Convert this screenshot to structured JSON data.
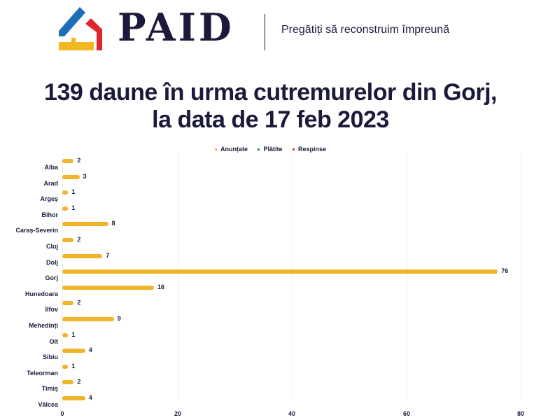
{
  "header": {
    "logo_text": "PAID",
    "tagline": "Pregătiți să reconstruim împreună",
    "logo_colors": {
      "blue": "#1f6fb8",
      "red": "#e0262b",
      "yellow": "#f2b822"
    }
  },
  "title": {
    "line1": "139 daune în urma cutremurelor din Gorj,",
    "line2": "la data de 17 feb 2023"
  },
  "legend": [
    {
      "label": "Anunțate",
      "color": "#f0b429"
    },
    {
      "label": "Plătite",
      "color": "#2a7a7a"
    },
    {
      "label": "Respinse",
      "color": "#c0392b"
    }
  ],
  "axis": {
    "ticks": [
      "0",
      "20",
      "40",
      "60",
      "80"
    ]
  },
  "chart_data": {
    "type": "bar",
    "orientation": "horizontal",
    "title": "139 daune în urma cutremurelor din Gorj, la data de 17 feb 2023",
    "categories": [
      "Alba",
      "Arad",
      "Argeș",
      "Bihor",
      "Caraș-Severin",
      "Cluj",
      "Dolj",
      "Gorj",
      "Hunedoara",
      "Ilfov",
      "Mehedinți",
      "Olt",
      "Sibiu",
      "Teleorman",
      "Timiș",
      "Vâlcea"
    ],
    "series": [
      {
        "name": "Anunțate",
        "color": "#f0b429",
        "values": [
          2,
          3,
          1,
          1,
          8,
          2,
          7,
          76,
          16,
          2,
          9,
          1,
          4,
          1,
          2,
          4
        ]
      },
      {
        "name": "Plătite",
        "color": "#2a7a7a",
        "values": [
          0,
          0,
          0,
          0,
          0,
          0,
          0,
          0,
          0,
          0,
          0,
          0,
          0,
          0,
          0,
          0
        ]
      },
      {
        "name": "Respinse",
        "color": "#c0392b",
        "values": [
          0,
          0,
          0,
          0,
          0,
          0,
          0,
          0,
          0,
          0,
          0,
          0,
          0,
          0,
          0,
          0
        ]
      }
    ],
    "xlabel": "",
    "ylabel": "",
    "xlim": [
      0,
      80
    ],
    "xticks": [
      0,
      20,
      40,
      60,
      80
    ],
    "grid": true,
    "legend_position": "top"
  }
}
